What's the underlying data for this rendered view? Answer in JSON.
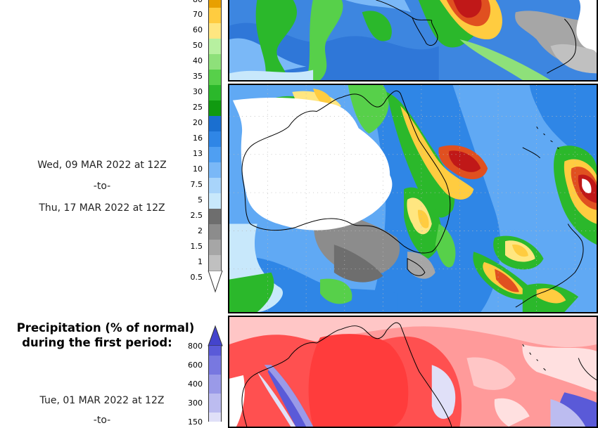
{
  "panel1": {
    "date_start": "Wed, 09 MAR 2022 at 12Z",
    "date_sep": "-to-",
    "date_end": "Thu, 17 MAR 2022 at 12Z"
  },
  "precip_legend": {
    "ticks": [
      "80",
      "70",
      "60",
      "50",
      "40",
      "35",
      "30",
      "25",
      "20",
      "16",
      "13",
      "10",
      "7.5",
      "5",
      "2.5",
      "2",
      "1.5",
      "1",
      "0.5"
    ],
    "colors": {
      "80": "#e8a000",
      "70": "#ffcc40",
      "60": "#ffe680",
      "50": "#b7f0a0",
      "40": "#8ee07a",
      "35": "#57d04a",
      "30": "#2bb82b",
      "25": "#109a10",
      "20": "#1a6fd0",
      "16": "#2f86e6",
      "13": "#4f9ff2",
      "10": "#7ab8f7",
      "7.5": "#a8d4fa",
      "5": "#c8e8fb",
      "2.5": "#6e6e6e",
      "2": "#8c8c8c",
      "1.5": "#a6a6a6",
      "1": "#c0c0c0",
      "0.5": "#ffffff"
    }
  },
  "panel2": {
    "title_line1": "Precipitation (% of normal)",
    "title_line2": "during the first period:",
    "date_start": "Tue, 01 MAR 2022 at 12Z",
    "date_sep": "-to-"
  },
  "pct_legend": {
    "ticks": [
      "800",
      "600",
      "400",
      "300",
      "150"
    ],
    "colors": {
      "800": "#5a5ad8",
      "600": "#7878e0",
      "400": "#9a9ae8",
      "300": "#bcbcf0",
      "150": "#e0e0f8"
    }
  }
}
